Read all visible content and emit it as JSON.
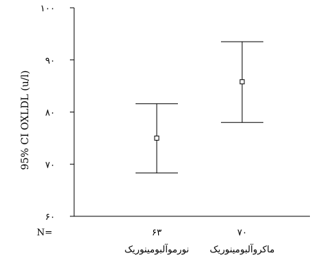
{
  "chart_data": {
    "type": "errorbar",
    "ylabel": "95% CI OXLDL (u/l)",
    "ylim": [
      60,
      100
    ],
    "yticks": [
      60,
      70,
      80,
      90,
      100
    ],
    "ytick_labels": [
      "۶۰",
      "۷۰",
      "۸۰",
      "۹۰",
      "۱۰۰"
    ],
    "n_prefix": "N=",
    "grid": false,
    "categories": [
      {
        "name": "نورموآلبومینوریک",
        "n": "۶۳",
        "mean": 75.0,
        "ci_low": 68.3,
        "ci_high": 81.6
      },
      {
        "name": "ماکروآلبومینوریک",
        "n": "۷۰",
        "mean": 85.8,
        "ci_low": 78.0,
        "ci_high": 93.5
      }
    ]
  }
}
